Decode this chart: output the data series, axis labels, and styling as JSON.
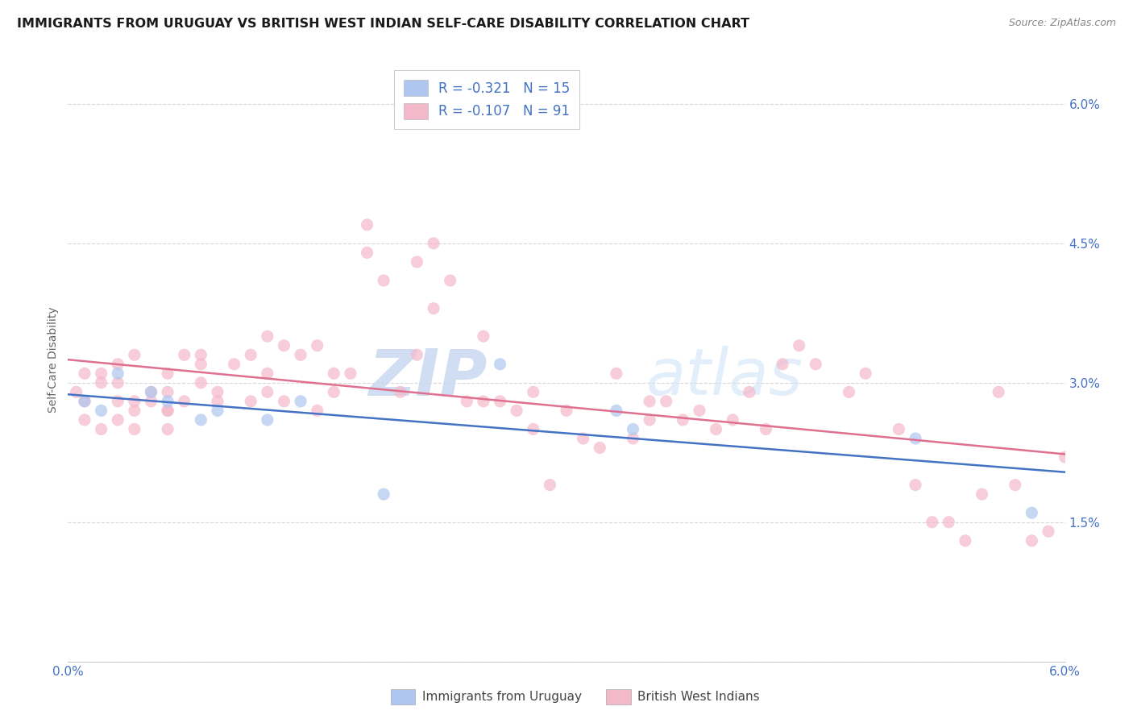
{
  "title": "IMMIGRANTS FROM URUGUAY VS BRITISH WEST INDIAN SELF-CARE DISABILITY CORRELATION CHART",
  "source": "Source: ZipAtlas.com",
  "ylabel": "Self-Care Disability",
  "ytick_vals": [
    0.0,
    0.015,
    0.03,
    0.045,
    0.06
  ],
  "ytick_labels": [
    "",
    "1.5%",
    "3.0%",
    "4.5%",
    "6.0%"
  ],
  "xtick_vals": [
    0.0,
    0.01,
    0.02,
    0.03,
    0.04,
    0.05,
    0.06
  ],
  "xtick_labels": [
    "0.0%",
    "",
    "",
    "",
    "",
    "",
    "6.0%"
  ],
  "xmin": 0.0,
  "xmax": 0.06,
  "ymin": 0.0,
  "ymax": 0.065,
  "legend_entries": [
    {
      "label": "Immigrants from Uruguay",
      "color": "#aec6f0",
      "R": "-0.321",
      "N": "15"
    },
    {
      "label": "British West Indians",
      "color": "#f4b8cb",
      "R": "-0.107",
      "N": "91"
    }
  ],
  "watermark_zip": "ZIP",
  "watermark_atlas": "atlas",
  "uruguay_x": [
    0.001,
    0.002,
    0.003,
    0.005,
    0.006,
    0.008,
    0.009,
    0.012,
    0.014,
    0.019,
    0.026,
    0.033,
    0.034,
    0.051,
    0.058
  ],
  "uruguay_y": [
    0.028,
    0.027,
    0.031,
    0.029,
    0.028,
    0.026,
    0.027,
    0.026,
    0.028,
    0.018,
    0.032,
    0.027,
    0.025,
    0.024,
    0.016
  ],
  "bwi_x": [
    0.0005,
    0.001,
    0.001,
    0.001,
    0.002,
    0.002,
    0.002,
    0.003,
    0.003,
    0.003,
    0.003,
    0.004,
    0.004,
    0.004,
    0.004,
    0.005,
    0.005,
    0.006,
    0.006,
    0.006,
    0.006,
    0.006,
    0.007,
    0.007,
    0.008,
    0.008,
    0.008,
    0.009,
    0.009,
    0.01,
    0.011,
    0.011,
    0.012,
    0.012,
    0.012,
    0.013,
    0.013,
    0.014,
    0.015,
    0.015,
    0.016,
    0.016,
    0.017,
    0.018,
    0.018,
    0.019,
    0.02,
    0.021,
    0.021,
    0.022,
    0.022,
    0.023,
    0.024,
    0.025,
    0.025,
    0.026,
    0.027,
    0.028,
    0.028,
    0.029,
    0.03,
    0.031,
    0.032,
    0.033,
    0.034,
    0.035,
    0.035,
    0.036,
    0.037,
    0.038,
    0.039,
    0.04,
    0.041,
    0.042,
    0.043,
    0.044,
    0.045,
    0.047,
    0.048,
    0.05,
    0.051,
    0.052,
    0.053,
    0.054,
    0.055,
    0.056,
    0.057,
    0.058,
    0.059,
    0.06,
    0.061
  ],
  "bwi_y": [
    0.029,
    0.028,
    0.026,
    0.031,
    0.03,
    0.025,
    0.031,
    0.032,
    0.028,
    0.03,
    0.026,
    0.027,
    0.028,
    0.025,
    0.033,
    0.029,
    0.028,
    0.027,
    0.031,
    0.029,
    0.027,
    0.025,
    0.033,
    0.028,
    0.03,
    0.032,
    0.033,
    0.028,
    0.029,
    0.032,
    0.028,
    0.033,
    0.031,
    0.029,
    0.035,
    0.034,
    0.028,
    0.033,
    0.027,
    0.034,
    0.031,
    0.029,
    0.031,
    0.047,
    0.044,
    0.041,
    0.029,
    0.033,
    0.043,
    0.045,
    0.038,
    0.041,
    0.028,
    0.035,
    0.028,
    0.028,
    0.027,
    0.029,
    0.025,
    0.019,
    0.027,
    0.024,
    0.023,
    0.031,
    0.024,
    0.028,
    0.026,
    0.028,
    0.026,
    0.027,
    0.025,
    0.026,
    0.029,
    0.025,
    0.032,
    0.034,
    0.032,
    0.029,
    0.031,
    0.025,
    0.019,
    0.015,
    0.015,
    0.013,
    0.018,
    0.029,
    0.019,
    0.013,
    0.014,
    0.022,
    0.016
  ],
  "scatter_color_uruguay": "#aec6f0",
  "scatter_color_bwi": "#f4b8cb",
  "line_color_uruguay": "#4472c4",
  "line_color_bwi": "#e07090",
  "scatter_size": 120,
  "scatter_alpha": 0.7,
  "background_color": "#ffffff",
  "grid_color": "#d8d8d8",
  "tick_label_color": "#4472c4"
}
